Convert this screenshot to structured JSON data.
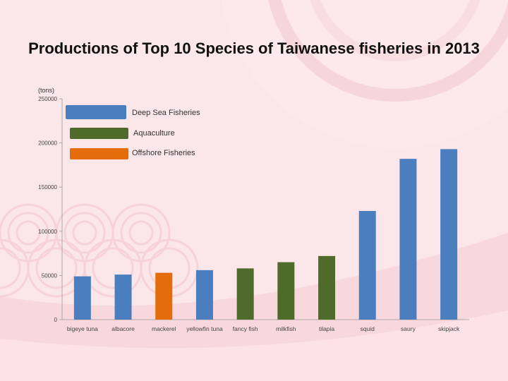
{
  "chart_data": {
    "type": "bar",
    "title": "Productions of Top 10 Species of Taiwanese fisheries in 2013",
    "ylabel": "(tons)",
    "ylim": [
      0,
      250000
    ],
    "yticks": [
      0,
      50000,
      100000,
      150000,
      200000,
      250000
    ],
    "categories": [
      "bigeye tuna",
      "albacore",
      "mackerel",
      "yellowfin tuna",
      "fancy fish",
      "milkfish",
      "tilapia",
      "squid",
      "saury",
      "skipjack"
    ],
    "values": [
      49000,
      51000,
      53000,
      56000,
      58000,
      65000,
      72000,
      123000,
      182000,
      193000
    ],
    "groups": [
      "Deep Sea Fisheries",
      "Deep Sea Fisheries",
      "Offshore Fisheries",
      "Deep Sea Fisheries",
      "Aquaculture",
      "Aquaculture",
      "Aquaculture",
      "Deep Sea Fisheries",
      "Deep Sea Fisheries",
      "Deep Sea Fisheries"
    ],
    "legend": [
      {
        "name": "Deep Sea Fisheries",
        "color": "#4a7ebf"
      },
      {
        "name": "Aquaculture",
        "color": "#4f6b2a"
      },
      {
        "name": "Offshore Fisheries",
        "color": "#e46c0a"
      }
    ],
    "legend_position": "top-left",
    "grid": false
  }
}
